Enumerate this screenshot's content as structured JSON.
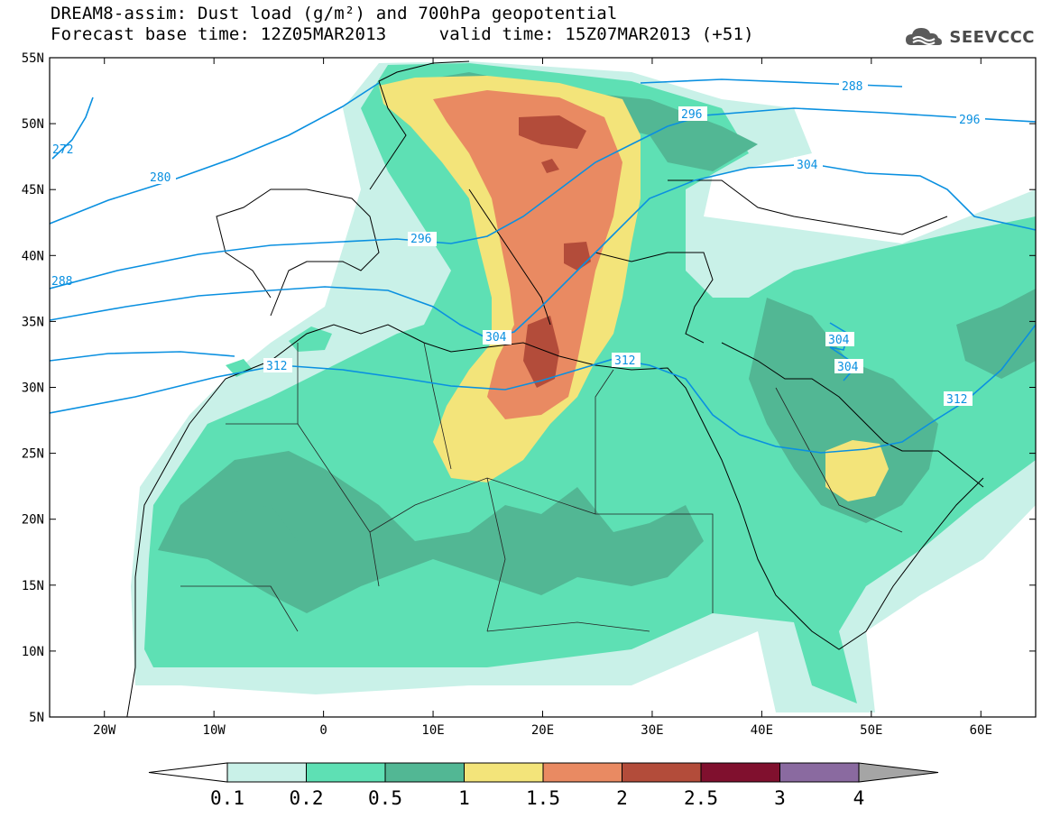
{
  "title": {
    "line1": "DREAM8-assim: Dust load (g/m²) and 700hPa geopotential",
    "line2": "Forecast base time: 12Z05MAR2013     valid time: 15Z07MAR2013 (+51)"
  },
  "logo": {
    "text": "SEEVCCC",
    "icon": "cloud-icon"
  },
  "map": {
    "lon_range": [
      -25,
      65
    ],
    "lat_range": [
      5,
      55
    ],
    "lat_ticks": [
      "5N",
      "10N",
      "15N",
      "20N",
      "25N",
      "30N",
      "35N",
      "40N",
      "45N",
      "50N",
      "55N"
    ],
    "lon_ticks": [
      "20W",
      "10W",
      "0",
      "10E",
      "20E",
      "30E",
      "40E",
      "50E",
      "60E"
    ],
    "ocean_color": "#ffffff",
    "contour_color": "#0a90e0",
    "contour_labels": [
      "272",
      "280",
      "288",
      "288",
      "296",
      "296",
      "296",
      "304",
      "304",
      "304",
      "304",
      "312",
      "312",
      "312"
    ]
  },
  "colorbar": {
    "labels": [
      "0.1",
      "0.2",
      "0.5",
      "1",
      "1.5",
      "2",
      "2.5",
      "3",
      "4"
    ],
    "colors": [
      "#ffffff",
      "#c9f1e8",
      "#5ee0b4",
      "#52b794",
      "#f3e47a",
      "#e98a62",
      "#b34c3a",
      "#80102e",
      "#8a6aa0",
      "#a5a5a5"
    ]
  }
}
